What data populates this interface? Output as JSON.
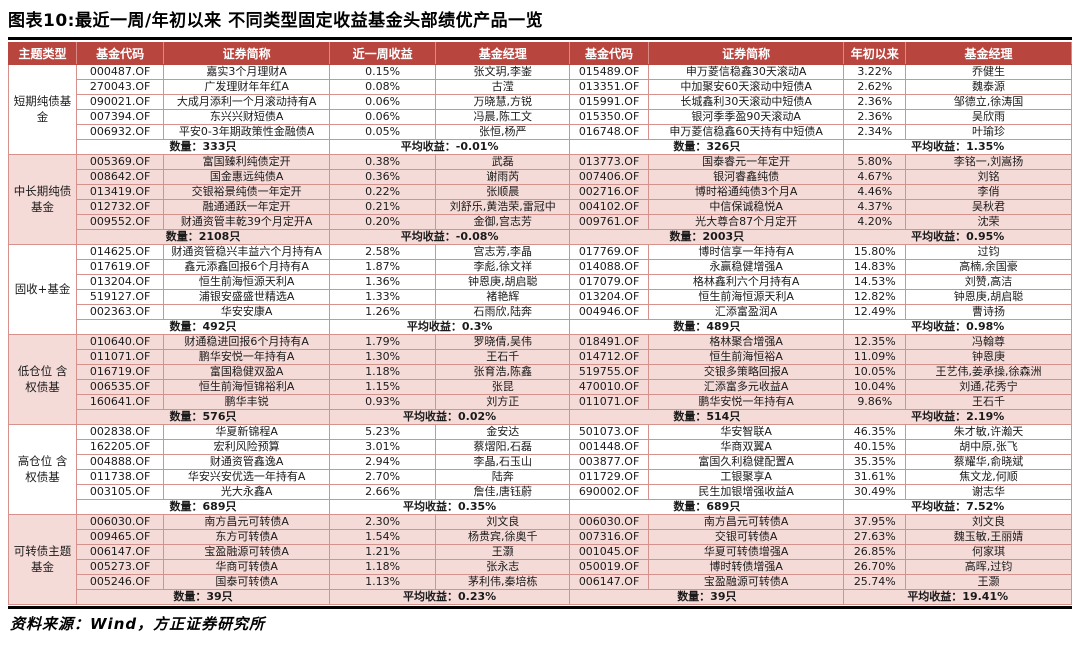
{
  "title": "图表10:最近一周/年初以来 不同类型固定收益基金头部绩优产品一览",
  "source": "资料来源：Wind，方正证券研究所",
  "colors": {
    "header_bg": "#b9453f",
    "header_text": "#ffffff",
    "row_alt_bg": "#f5dbd8",
    "border": "#d6918c",
    "rule": "#000000"
  },
  "table": {
    "headers": [
      "主题类型",
      "基金代码",
      "证券简称",
      "近一周收益",
      "基金经理",
      "基金代码",
      "证券简称",
      "年初以来",
      "基金经理"
    ],
    "sections": [
      {
        "theme": "短期纯债基金",
        "shaded": false,
        "week": {
          "rows": [
            [
              "000487.OF",
              "嘉实3个月理财A",
              "0.15%",
              "张文玥,李崟"
            ],
            [
              "270043.OF",
              "广发理财年年红A",
              "0.08%",
              "古滢"
            ],
            [
              "090021.OF",
              "大成月添利一个月滚动持有A",
              "0.06%",
              "万晓慧,方锐"
            ],
            [
              "007394.OF",
              "东兴兴财短债A",
              "0.06%",
              "冯晨,陈工文"
            ],
            [
              "006932.OF",
              "平安0-3年期政策性金融债A",
              "0.05%",
              "张恒,杨严"
            ]
          ],
          "count": "数量：333只",
          "avg": "平均收益：-0.01%"
        },
        "ytd": {
          "rows": [
            [
              "015489.OF",
              "申万菱信稳鑫30天滚动A",
              "3.22%",
              "乔健生"
            ],
            [
              "013351.OF",
              "中加聚安60天滚动中短债A",
              "2.62%",
              "魏泰源"
            ],
            [
              "015991.OF",
              "长城鑫利30天滚动中短债A",
              "2.36%",
              "邹德立,徐涛国"
            ],
            [
              "015350.OF",
              "银河季季盈90天滚动A",
              "2.36%",
              "吴欣雨"
            ],
            [
              "016748.OF",
              "申万菱信稳鑫60天持有中短债A",
              "2.34%",
              "叶瑜珍"
            ]
          ],
          "count": "数量：326只",
          "avg": "平均收益：1.35%"
        }
      },
      {
        "theme": "中长期纯债基金",
        "shaded": true,
        "week": {
          "rows": [
            [
              "005369.OF",
              "富国臻利纯债定开",
              "0.38%",
              "武磊"
            ],
            [
              "008642.OF",
              "国金惠远纯债A",
              "0.36%",
              "谢雨芮"
            ],
            [
              "013419.OF",
              "交银裕景纯债一年定开",
              "0.22%",
              "张顺晨"
            ],
            [
              "012732.OF",
              "融通通跃一年定开",
              "0.21%",
              "刘舒乐,黄浩荣,雷冠中"
            ],
            [
              "009552.OF",
              "财通资管丰乾39个月定开A",
              "0.20%",
              "金御,宫志芳"
            ]
          ],
          "count": "数量：2108只",
          "avg": "平均收益：-0.08%"
        },
        "ytd": {
          "rows": [
            [
              "013773.OF",
              "国泰睿元一年定开",
              "5.80%",
              "李铭一,刘嵩扬"
            ],
            [
              "007406.OF",
              "银河睿鑫纯债",
              "4.67%",
              "刘铭"
            ],
            [
              "002716.OF",
              "博时裕通纯债3个月A",
              "4.46%",
              "李俏"
            ],
            [
              "004102.OF",
              "中信保诚稳悦A",
              "4.37%",
              "吴秋君"
            ],
            [
              "009761.OF",
              "光大尊合87个月定开",
              "4.20%",
              "沈荣"
            ]
          ],
          "count": "数量：2003只",
          "avg": "平均收益：0.95%"
        }
      },
      {
        "theme": "固收+基金",
        "shaded": false,
        "week": {
          "rows": [
            [
              "014625.OF",
              "财通资管稳兴丰益六个月持有A",
              "2.58%",
              "宫志芳,李晶"
            ],
            [
              "017619.OF",
              "鑫元添鑫回报6个月持有A",
              "1.87%",
              "李彪,徐文祥"
            ],
            [
              "013204.OF",
              "恒生前海恒源天利A",
              "1.36%",
              "钟恩庚,胡启聪"
            ],
            [
              "519127.OF",
              "浦银安盛盛世精选A",
              "1.33%",
              "褚艳辉"
            ],
            [
              "002363.OF",
              "华安安康A",
              "1.26%",
              "石雨欣,陆奔"
            ]
          ],
          "count": "数量：492只",
          "avg": "平均收益：0.3%"
        },
        "ytd": {
          "rows": [
            [
              "017769.OF",
              "博时信享一年持有A",
              "15.80%",
              "过钧"
            ],
            [
              "014088.OF",
              "永赢稳健增强A",
              "14.83%",
              "高楠,余国豪"
            ],
            [
              "017079.OF",
              "格林鑫利六个月持有A",
              "14.53%",
              "刘赞,高洁"
            ],
            [
              "013204.OF",
              "恒生前海恒源天利A",
              "12.82%",
              "钟恩庚,胡启聪"
            ],
            [
              "004946.OF",
              "汇添富盈润A",
              "12.49%",
              "曹诗扬"
            ]
          ],
          "count": "数量：489只",
          "avg": "平均收益：0.98%"
        }
      },
      {
        "theme": "低仓位 含权债基",
        "shaded": true,
        "week": {
          "rows": [
            [
              "010640.OF",
              "财通稳进回报6个月持有A",
              "1.79%",
              "罗晓倩,吴伟"
            ],
            [
              "011071.OF",
              "鹏华安悦一年持有A",
              "1.30%",
              "王石千"
            ],
            [
              "016719.OF",
              "富国稳健双盈A",
              "1.18%",
              "张育浩,陈鑫"
            ],
            [
              "006535.OF",
              "恒生前海恒锦裕利A",
              "1.15%",
              "张昆"
            ],
            [
              "160641.OF",
              "鹏华丰锐",
              "0.93%",
              "刘方正"
            ]
          ],
          "count": "数量：576只",
          "avg": "平均收益：0.02%"
        },
        "ytd": {
          "rows": [
            [
              "018491.OF",
              "格林聚合增强A",
              "12.35%",
              "冯翰尊"
            ],
            [
              "014712.OF",
              "恒生前海恒裕A",
              "11.09%",
              "钟恩庚"
            ],
            [
              "519755.OF",
              "交银多策略回报A",
              "10.05%",
              "王艺伟,姜承操,徐森洲"
            ],
            [
              "470010.OF",
              "汇添富多元收益A",
              "10.04%",
              "刘通,花秀宁"
            ],
            [
              "011071.OF",
              "鹏华安悦一年持有A",
              "9.86%",
              "王石千"
            ]
          ],
          "count": "数量：514只",
          "avg": "平均收益：2.19%"
        }
      },
      {
        "theme": "高仓位 含权债基",
        "shaded": false,
        "week": {
          "rows": [
            [
              "002838.OF",
              "华夏新锦程A",
              "5.23%",
              "金安达"
            ],
            [
              "162205.OF",
              "宏利风险预算",
              "3.01%",
              "蔡熠阳,石磊"
            ],
            [
              "004888.OF",
              "财通资管鑫逸A",
              "2.94%",
              "李晶,石玉山"
            ],
            [
              "011738.OF",
              "华安兴安优选一年持有A",
              "2.70%",
              "陆奔"
            ],
            [
              "003105.OF",
              "光大永鑫A",
              "2.66%",
              "詹佳,唐钰蔚"
            ]
          ],
          "count": "数量：689只",
          "avg": "平均收益：0.35%"
        },
        "ytd": {
          "rows": [
            [
              "501073.OF",
              "华安智联A",
              "46.35%",
              "朱才敏,许瀚天"
            ],
            [
              "001448.OF",
              "华商双翼A",
              "40.15%",
              "胡中原,张飞"
            ],
            [
              "003877.OF",
              "富国久利稳健配置A",
              "35.35%",
              "蔡耀华,俞晓斌"
            ],
            [
              "011729.OF",
              "工银聚享A",
              "31.61%",
              "焦文龙,何顺"
            ],
            [
              "690002.OF",
              "民生加银增强收益A",
              "30.49%",
              "谢志华"
            ]
          ],
          "count": "数量：689只",
          "avg": "平均收益：7.52%"
        }
      },
      {
        "theme": "可转债主题 基金",
        "shaded": true,
        "week": {
          "rows": [
            [
              "006030.OF",
              "南方昌元可转债A",
              "2.30%",
              "刘文良"
            ],
            [
              "009465.OF",
              "东方可转债A",
              "1.54%",
              "杨贵宾,徐奥千"
            ],
            [
              "006147.OF",
              "宝盈融源可转债A",
              "1.21%",
              "王灏"
            ],
            [
              "005273.OF",
              "华商可转债A",
              "1.18%",
              "张永志"
            ],
            [
              "005246.OF",
              "国泰可转债A",
              "1.13%",
              "茅利伟,秦培栋"
            ]
          ],
          "count": "数量：39只",
          "avg": "平均收益：0.23%"
        },
        "ytd": {
          "rows": [
            [
              "006030.OF",
              "南方昌元可转债A",
              "37.95%",
              "刘文良"
            ],
            [
              "007316.OF",
              "交银可转债A",
              "27.63%",
              "魏玉敏,王丽婧"
            ],
            [
              "001045.OF",
              "华夏可转债增强A",
              "26.85%",
              "何家琪"
            ],
            [
              "050019.OF",
              "博时转债增强A",
              "26.70%",
              "高晖,过钧"
            ],
            [
              "006147.OF",
              "宝盈融源可转债A",
              "25.74%",
              "王灏"
            ]
          ],
          "count": "数量：39只",
          "avg": "平均收益：19.41%"
        }
      }
    ]
  }
}
